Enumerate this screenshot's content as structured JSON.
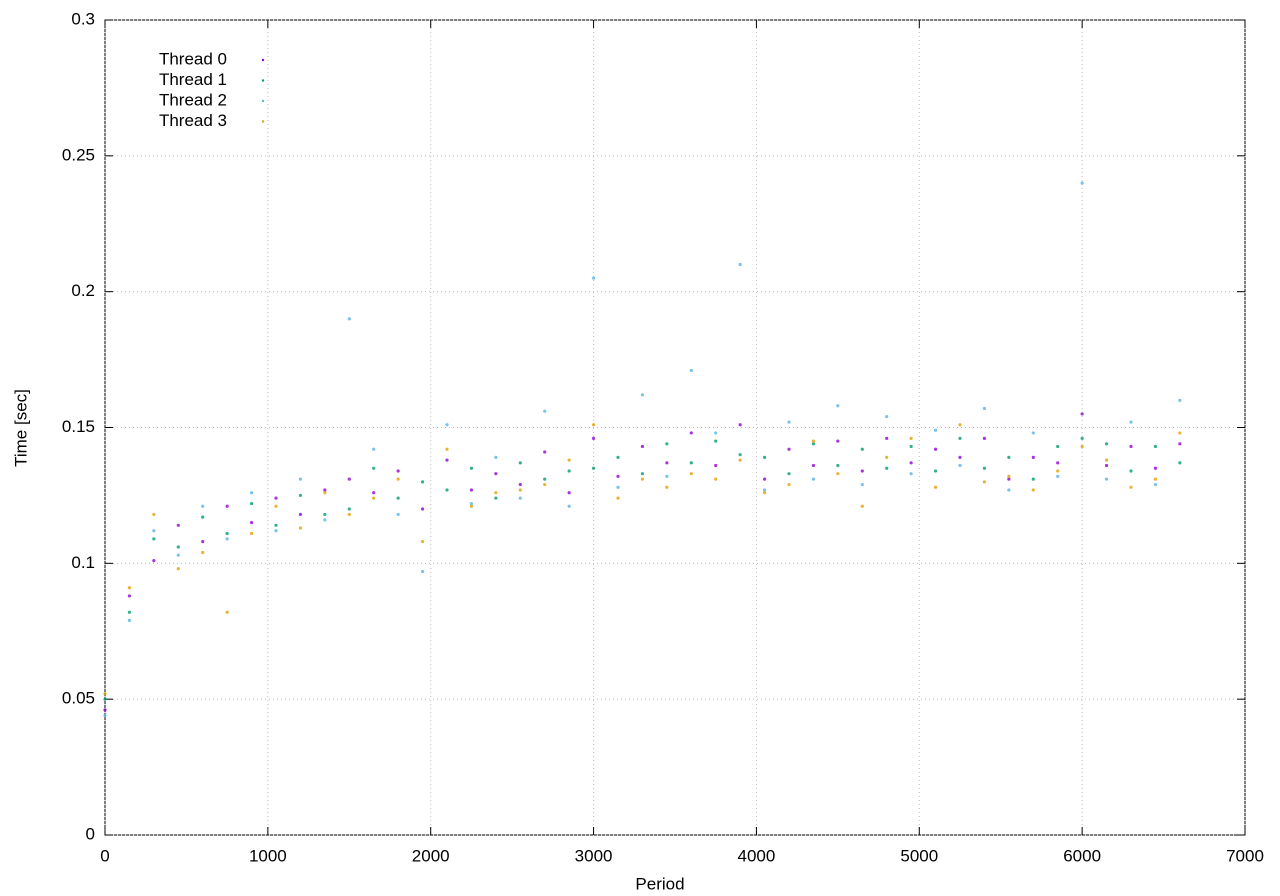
{
  "chart_data": {
    "type": "scatter",
    "x_label": "Period",
    "y_label": "Time [sec]",
    "xlim": [
      0,
      7000
    ],
    "ylim": [
      0,
      0.3
    ],
    "xticks": [
      0,
      1000,
      2000,
      3000,
      4000,
      5000,
      6000,
      7000
    ],
    "yticks": [
      0,
      0.05,
      0.1,
      0.15,
      0.2,
      0.25,
      0.3
    ],
    "grid": true,
    "legend": "upper-left",
    "x": [
      0,
      150,
      300,
      450,
      600,
      750,
      900,
      1050,
      1200,
      1350,
      1500,
      1650,
      1800,
      1950,
      2100,
      2250,
      2400,
      2550,
      2700,
      2850,
      3000,
      3150,
      3300,
      3450,
      3600,
      3750,
      3900,
      4050,
      4200,
      4350,
      4500,
      4650,
      4800,
      4950,
      5100,
      5250,
      5400,
      5550,
      5700,
      5850,
      6000,
      6150,
      6300,
      6450,
      6600
    ],
    "series": [
      {
        "name": "Thread 0",
        "color": "#9400d3",
        "values": [
          0.046,
          0.088,
          0.101,
          0.114,
          0.108,
          0.121,
          0.115,
          0.124,
          0.118,
          0.127,
          0.131,
          0.126,
          0.134,
          0.12,
          0.138,
          0.127,
          0.133,
          0.129,
          0.141,
          0.126,
          0.146,
          0.132,
          0.143,
          0.137,
          0.148,
          0.136,
          0.151,
          0.131,
          0.142,
          0.136,
          0.145,
          0.134,
          0.146,
          0.137,
          0.142,
          0.139,
          0.146,
          0.131,
          0.139,
          0.137,
          0.155,
          0.136,
          0.143,
          0.135,
          0.144
        ]
      },
      {
        "name": "Thread 1",
        "color": "#009e73",
        "values": [
          0.05,
          0.082,
          0.109,
          0.106,
          0.117,
          0.111,
          0.122,
          0.114,
          0.125,
          0.118,
          0.12,
          0.135,
          0.124,
          0.13,
          0.127,
          0.135,
          0.124,
          0.137,
          0.131,
          0.134,
          0.135,
          0.139,
          0.133,
          0.144,
          0.137,
          0.145,
          0.14,
          0.139,
          0.133,
          0.144,
          0.136,
          0.142,
          0.135,
          0.143,
          0.134,
          0.146,
          0.135,
          0.139,
          0.131,
          0.143,
          0.146,
          0.144,
          0.134,
          0.143,
          0.137
        ]
      },
      {
        "name": "Thread 2",
        "color": "#56b4e9",
        "values": [
          0.044,
          0.079,
          0.112,
          0.103,
          0.121,
          0.109,
          0.126,
          0.112,
          0.131,
          0.116,
          0.19,
          0.142,
          0.118,
          0.097,
          0.151,
          0.122,
          0.139,
          0.124,
          0.156,
          0.121,
          0.205,
          0.128,
          0.162,
          0.132,
          0.171,
          0.148,
          0.21,
          0.127,
          0.152,
          0.131,
          0.158,
          0.129,
          0.154,
          0.133,
          0.149,
          0.136,
          0.157,
          0.127,
          0.148,
          0.132,
          0.24,
          0.131,
          0.152,
          0.129,
          0.16
        ]
      },
      {
        "name": "Thread 3",
        "color": "#e69f00",
        "values": [
          0.052,
          0.091,
          0.118,
          0.098,
          0.104,
          0.082,
          0.111,
          0.121,
          0.113,
          0.126,
          0.118,
          0.124,
          0.131,
          0.108,
          0.142,
          0.121,
          0.126,
          0.127,
          0.129,
          0.138,
          0.151,
          0.124,
          0.131,
          0.128,
          0.133,
          0.131,
          0.138,
          0.126,
          0.129,
          0.145,
          0.133,
          0.121,
          0.139,
          0.146,
          0.128,
          0.151,
          0.13,
          0.132,
          0.127,
          0.134,
          0.143,
          0.138,
          0.128,
          0.131,
          0.148
        ]
      }
    ]
  }
}
